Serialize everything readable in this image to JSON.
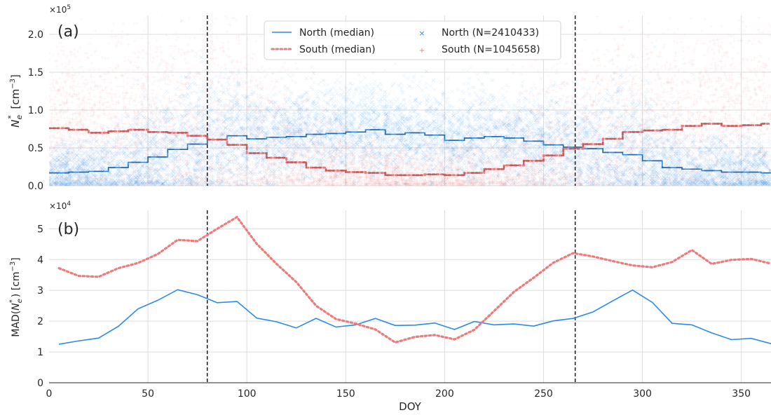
{
  "chart_data": [
    {
      "panel_label": "(a)",
      "type": "scatter",
      "ylabel_main": "N",
      "ylabel_sub": "e",
      "ylabel_sup": "*",
      "ylabel_unit": "[cm",
      "ylabel_unit_sup": "−3",
      "ylabel_unit_end": "]",
      "y_multiplier": "×10",
      "y_multiplier_exp": "5",
      "xlim": [
        0,
        365
      ],
      "ylim": [
        0,
        2.25
      ],
      "y_ticks": [
        "0.0",
        "0.5",
        "1.0",
        "1.5",
        "2.0"
      ],
      "grid": true,
      "legend_position": "top-center",
      "legend": [
        {
          "label": "North (median)",
          "marker": "line",
          "color": "#2b8be8"
        },
        {
          "label": "South (median)",
          "marker": "dotted",
          "color": "#ec7b7b"
        },
        {
          "label": "North (N=2410433)",
          "marker": "x",
          "color": "#2b8be8"
        },
        {
          "label": "South (N=1045658)",
          "marker": "+",
          "color": "#ec7b7b"
        }
      ],
      "vlines": [
        80,
        266
      ],
      "series": [
        {
          "name": "North (median)",
          "color": "#2b8be8",
          "x": [
            5,
            15,
            25,
            35,
            45,
            55,
            65,
            75,
            85,
            95,
            105,
            115,
            125,
            135,
            145,
            155,
            165,
            175,
            185,
            195,
            205,
            215,
            225,
            235,
            245,
            255,
            265,
            275,
            285,
            295,
            305,
            315,
            325,
            335,
            345,
            355,
            365
          ],
          "values": [
            0.17,
            0.18,
            0.19,
            0.24,
            0.31,
            0.38,
            0.48,
            0.55,
            0.61,
            0.66,
            0.62,
            0.64,
            0.65,
            0.68,
            0.69,
            0.71,
            0.74,
            0.68,
            0.7,
            0.67,
            0.6,
            0.63,
            0.65,
            0.63,
            0.59,
            0.54,
            0.51,
            0.49,
            0.44,
            0.41,
            0.33,
            0.24,
            0.22,
            0.2,
            0.18,
            0.18,
            0.17
          ]
        },
        {
          "name": "South (median)",
          "color": "#ec7b7b",
          "x": [
            5,
            15,
            25,
            35,
            45,
            55,
            65,
            75,
            85,
            95,
            105,
            115,
            125,
            135,
            145,
            155,
            165,
            175,
            185,
            195,
            205,
            215,
            225,
            235,
            245,
            255,
            265,
            275,
            285,
            295,
            305,
            315,
            325,
            335,
            345,
            355,
            365
          ],
          "values": [
            0.76,
            0.74,
            0.7,
            0.72,
            0.74,
            0.71,
            0.7,
            0.66,
            0.61,
            0.54,
            0.43,
            0.37,
            0.31,
            0.24,
            0.2,
            0.18,
            0.17,
            0.14,
            0.14,
            0.15,
            0.14,
            0.17,
            0.22,
            0.27,
            0.33,
            0.4,
            0.49,
            0.55,
            0.62,
            0.71,
            0.73,
            0.74,
            0.79,
            0.82,
            0.79,
            0.8,
            0.82
          ]
        }
      ]
    },
    {
      "panel_label": "(b)",
      "type": "line",
      "ylabel_pre": "MAD(",
      "ylabel_main": "N",
      "ylabel_sub": "e",
      "ylabel_sup": "*",
      "ylabel_unit": ") [cm",
      "ylabel_unit_sup": "−3",
      "ylabel_unit_end": "]",
      "y_multiplier": "×10",
      "y_multiplier_exp": "4",
      "xlabel": "DOY",
      "xlim": [
        0,
        365
      ],
      "ylim": [
        0,
        5.6
      ],
      "x_ticks": [
        "0",
        "50",
        "100",
        "150",
        "200",
        "250",
        "300",
        "350"
      ],
      "y_ticks": [
        "0",
        "1",
        "2",
        "3",
        "4",
        "5"
      ],
      "grid": true,
      "vlines": [
        80,
        266
      ],
      "series": [
        {
          "name": "North (median)",
          "color": "#2b8be8",
          "x": [
            5,
            15,
            25,
            35,
            45,
            55,
            65,
            75,
            85,
            95,
            105,
            115,
            125,
            135,
            145,
            155,
            165,
            175,
            185,
            195,
            205,
            215,
            225,
            235,
            245,
            255,
            265,
            275,
            285,
            295,
            305,
            315,
            325,
            335,
            345,
            355,
            365
          ],
          "values": [
            1.25,
            1.36,
            1.45,
            1.83,
            2.4,
            2.68,
            3.02,
            2.86,
            2.6,
            2.64,
            2.1,
            1.98,
            1.78,
            2.09,
            1.81,
            1.88,
            2.09,
            1.86,
            1.87,
            1.94,
            1.73,
            1.99,
            1.88,
            1.91,
            1.84,
            2.01,
            2.09,
            2.3,
            2.66,
            3.01,
            2.61,
            1.93,
            1.88,
            1.62,
            1.4,
            1.44,
            1.27
          ]
        },
        {
          "name": "South (median)",
          "color": "#ec7b7b",
          "x": [
            5,
            15,
            25,
            35,
            45,
            55,
            65,
            75,
            85,
            95,
            105,
            115,
            125,
            135,
            145,
            155,
            165,
            175,
            185,
            195,
            205,
            215,
            225,
            235,
            245,
            255,
            265,
            275,
            285,
            295,
            305,
            315,
            325,
            335,
            345,
            355,
            365
          ],
          "values": [
            3.72,
            3.47,
            3.44,
            3.72,
            3.89,
            4.18,
            4.64,
            4.6,
            5.0,
            5.38,
            4.51,
            3.86,
            3.27,
            2.5,
            2.07,
            1.92,
            1.73,
            1.31,
            1.49,
            1.55,
            1.41,
            1.72,
            2.33,
            2.95,
            3.41,
            3.9,
            4.21,
            4.1,
            3.95,
            3.81,
            3.75,
            3.92,
            4.31,
            3.86,
            3.99,
            4.02,
            3.87
          ]
        }
      ]
    }
  ]
}
